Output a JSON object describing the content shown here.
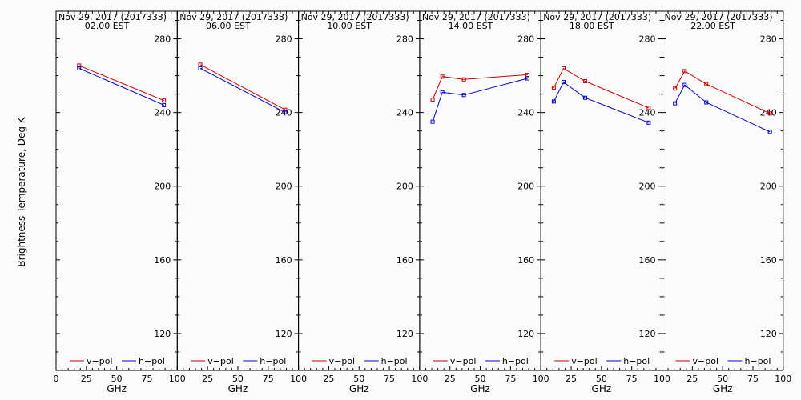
{
  "colors": {
    "v_pol": "#cc0000",
    "h_pol": "#0000cc",
    "frame": "#000000",
    "background": "#fbfbfb"
  },
  "chart_data": {
    "type": "line",
    "ylabel": "Brightness Temperature, Deg K",
    "ylim": [
      100,
      295
    ],
    "yticks": [
      120,
      160,
      200,
      240,
      280
    ],
    "xlim": [
      0,
      100
    ],
    "xticks": [
      "0",
      "25",
      "50",
      "75",
      "100"
    ],
    "grid": false,
    "legend_position": "bottom",
    "panels": [
      {
        "title_line1": "Nov 29, 2017 (2017333)",
        "title_line2": "02.00 EST",
        "xlabel": "GHz",
        "series": [
          {
            "name": "v-pol",
            "x": [
              19,
              89
            ],
            "y": [
              265.5,
              246.5
            ]
          },
          {
            "name": "h-pol",
            "x": [
              19,
              89
            ],
            "y": [
              264.0,
              244.0
            ]
          }
        ]
      },
      {
        "title_line1": "Nov 29, 2017 (2017333)",
        "title_line2": "06.00 EST",
        "xlabel": "GHz",
        "series": [
          {
            "name": "v-pol",
            "x": [
              19,
              89
            ],
            "y": [
              266.0,
              241.5
            ]
          },
          {
            "name": "h-pol",
            "x": [
              19,
              89
            ],
            "y": [
              264.0,
              240.0
            ]
          }
        ]
      },
      {
        "title_line1": "Nov 29, 2017 (2017333)",
        "title_line2": "10.00 EST",
        "xlabel": "GHz",
        "series": [
          {
            "name": "v-pol",
            "x": [],
            "y": []
          },
          {
            "name": "h-pol",
            "x": [],
            "y": []
          }
        ]
      },
      {
        "title_line1": "Nov 29, 2017 (2017333)",
        "title_line2": "14.00 EST",
        "xlabel": "GHz",
        "series": [
          {
            "name": "v-pol",
            "x": [
              10.7,
              18.7,
              36.5,
              89
            ],
            "y": [
              247.0,
              259.5,
              258.0,
              260.5
            ]
          },
          {
            "name": "h-pol",
            "x": [
              10.7,
              18.7,
              36.5,
              89
            ],
            "y": [
              235.0,
              251.0,
              249.5,
              258.5
            ]
          }
        ]
      },
      {
        "title_line1": "Nov 29, 2017 (2017333)",
        "title_line2": "18.00 EST",
        "xlabel": "GHz",
        "series": [
          {
            "name": "v-pol",
            "x": [
              10.7,
              18.7,
              36.5,
              89
            ],
            "y": [
              253.5,
              264.0,
              257.0,
              242.5
            ]
          },
          {
            "name": "h-pol",
            "x": [
              10.7,
              18.7,
              36.5,
              89
            ],
            "y": [
              246.0,
              256.5,
              248.0,
              234.5
            ]
          }
        ]
      },
      {
        "title_line1": "Nov 29, 2017 (2017333)",
        "title_line2": "22.00 EST",
        "xlabel": "GHz",
        "series": [
          {
            "name": "v-pol",
            "x": [
              10.7,
              18.7,
              36.5,
              89
            ],
            "y": [
              253.0,
              262.5,
              255.5,
              239.5
            ]
          },
          {
            "name": "h-pol",
            "x": [
              10.7,
              18.7,
              36.5,
              89
            ],
            "y": [
              245.0,
              255.0,
              245.5,
              229.5
            ]
          }
        ]
      }
    ]
  }
}
